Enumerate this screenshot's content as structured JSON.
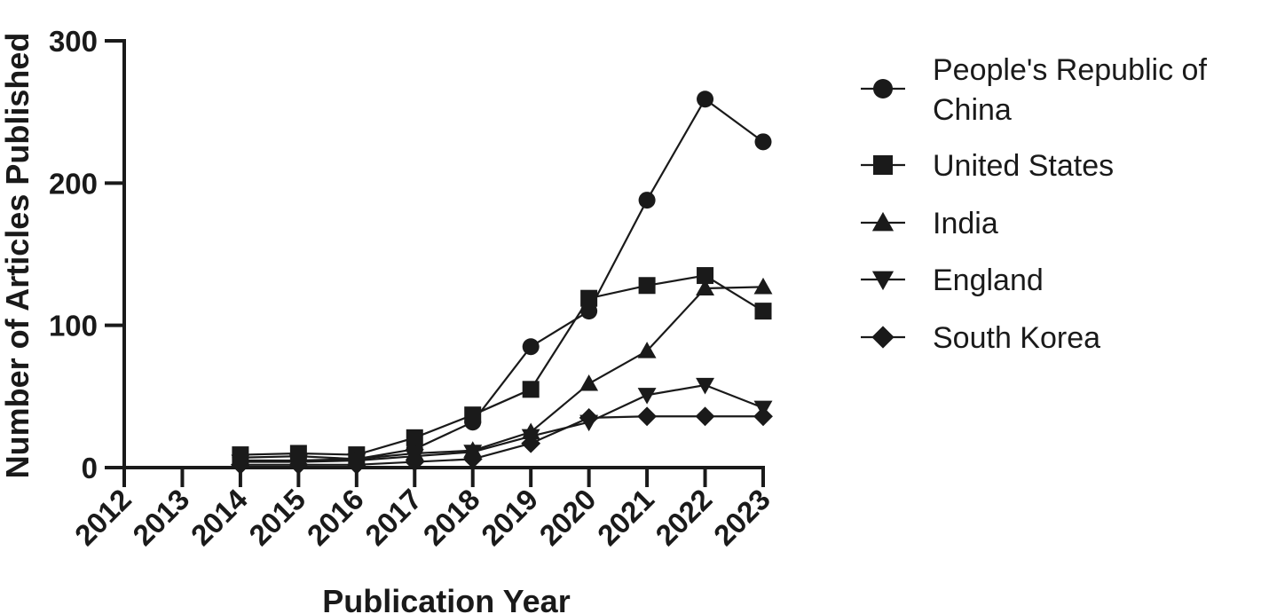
{
  "chart_data": {
    "type": "line",
    "xlabel": "Publication Year",
    "ylabel": "Number of Articles Published",
    "x": [
      "2012",
      "2013",
      "2014",
      "2015",
      "2016",
      "2017",
      "2018",
      "2019",
      "2020",
      "2021",
      "2022",
      "2023"
    ],
    "ylim": [
      0,
      300
    ],
    "yticks": [
      "0",
      "100",
      "200",
      "300"
    ],
    "grid": false,
    "legend_position": "right",
    "series": [
      {
        "name": "People's Republic of China",
        "marker": "circle",
        "color": "#1a1a1a",
        "values": [
          null,
          null,
          7,
          8,
          6,
          13,
          32,
          85,
          110,
          188,
          259,
          229
        ]
      },
      {
        "name": "United States",
        "marker": "square",
        "color": "#1a1a1a",
        "values": [
          null,
          null,
          9,
          10,
          9,
          21,
          37,
          55,
          119,
          128,
          135,
          110
        ]
      },
      {
        "name": "India",
        "marker": "triangle-up",
        "color": "#1a1a1a",
        "values": [
          null,
          null,
          5,
          5,
          6,
          10,
          12,
          25,
          59,
          82,
          126,
          127
        ]
      },
      {
        "name": "England",
        "marker": "triangle-down",
        "color": "#1a1a1a",
        "values": [
          null,
          null,
          4,
          4,
          5,
          8,
          11,
          22,
          32,
          51,
          58,
          42
        ]
      },
      {
        "name": "South Korea",
        "marker": "diamond",
        "color": "#1a1a1a",
        "values": [
          null,
          null,
          2,
          2,
          2,
          4,
          6,
          17,
          35,
          36,
          36,
          36
        ]
      }
    ]
  }
}
